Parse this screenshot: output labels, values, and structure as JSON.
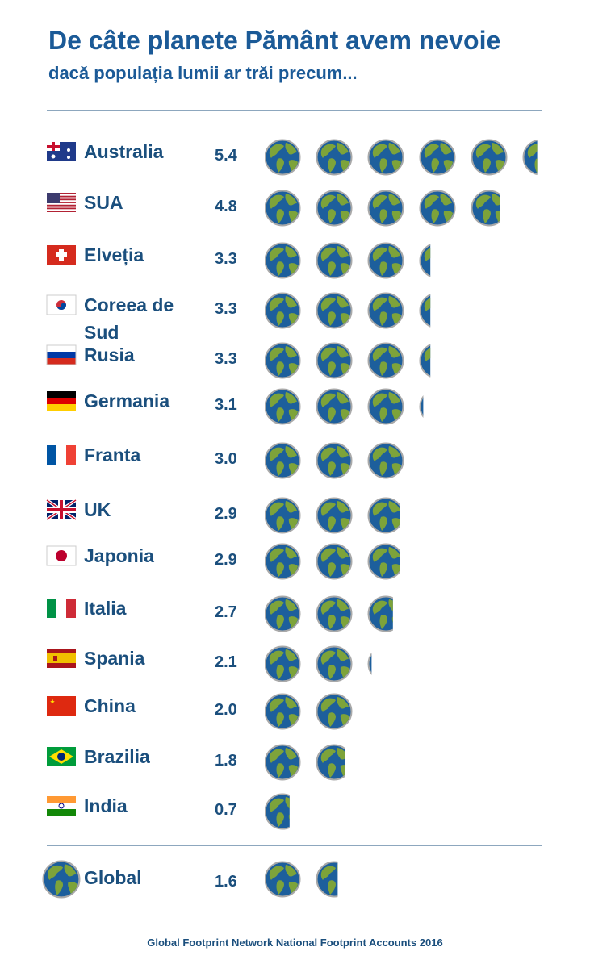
{
  "chart_data": {
    "type": "pictogram",
    "title": "De câte planete Pământ avem nevoie",
    "subtitle": "dacă populația lumii ar trăi precum...",
    "categories": [
      "Australia",
      "SUA",
      "Elveția",
      "Coreea de Sud",
      "Rusia",
      "Germania",
      "Franta",
      "UK",
      "Japonia",
      "Italia",
      "Spania",
      "China",
      "Brazilia",
      "India"
    ],
    "values": [
      5.4,
      4.8,
      3.3,
      3.3,
      3.3,
      3.1,
      3.0,
      2.9,
      2.9,
      2.7,
      2.1,
      2.0,
      1.8,
      0.7
    ],
    "value_labels": [
      "5.4",
      "4.8",
      "3.3",
      "3.3",
      "3.3",
      "3.1",
      "3.0",
      "2.9",
      "2.9",
      "2.7",
      "2.1",
      "2.0",
      "1.8",
      "0.7"
    ],
    "global": {
      "label": "Global",
      "value": 1.6,
      "value_label": "1.6"
    },
    "source": "Global Footprint Network National Footprint Accounts 2016",
    "color": "#1d5f9c"
  }
}
